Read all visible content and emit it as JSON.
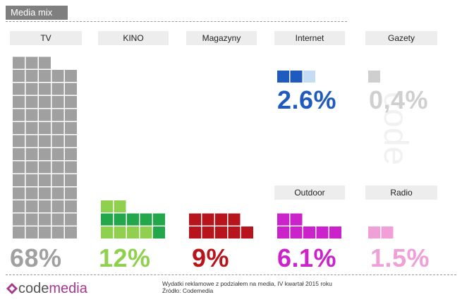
{
  "header": {
    "title": "Media mix"
  },
  "chart_data": {
    "type": "waffle",
    "unit_value": 1,
    "categories": [
      "TV",
      "KINO",
      "Magazyny",
      "Internet",
      "Gazety",
      "Outdoor",
      "Radio"
    ],
    "values": [
      68,
      12,
      9,
      2.6,
      0.4,
      6.1,
      1.5
    ],
    "value_labels": [
      "68%",
      "12%",
      "9%",
      "2.6%",
      "0,4%",
      "6.1%",
      "1.5%"
    ],
    "colors": {
      "TV": "#a0a0a0",
      "KINO": "#8fd14f",
      "Magazyny": "#b8141b",
      "Internet": "#1f5bbf",
      "Gazety": "#cfcfcf",
      "Outdoor": "#cc22cc",
      "Radio": "#f0a0d6"
    },
    "accent_colors": {
      "TV_light": "#e8e8e8",
      "KINO_dark": "#22a84a",
      "Internet_light": "#c5dcf5"
    }
  },
  "footer": {
    "logo_code": "code",
    "logo_media": "media",
    "note_line1": "Wydatki reklamowe z podziałem na media, IV kwartał 2015 roku",
    "note_line2": "Źródło: Codemedia"
  },
  "watermark": "code"
}
